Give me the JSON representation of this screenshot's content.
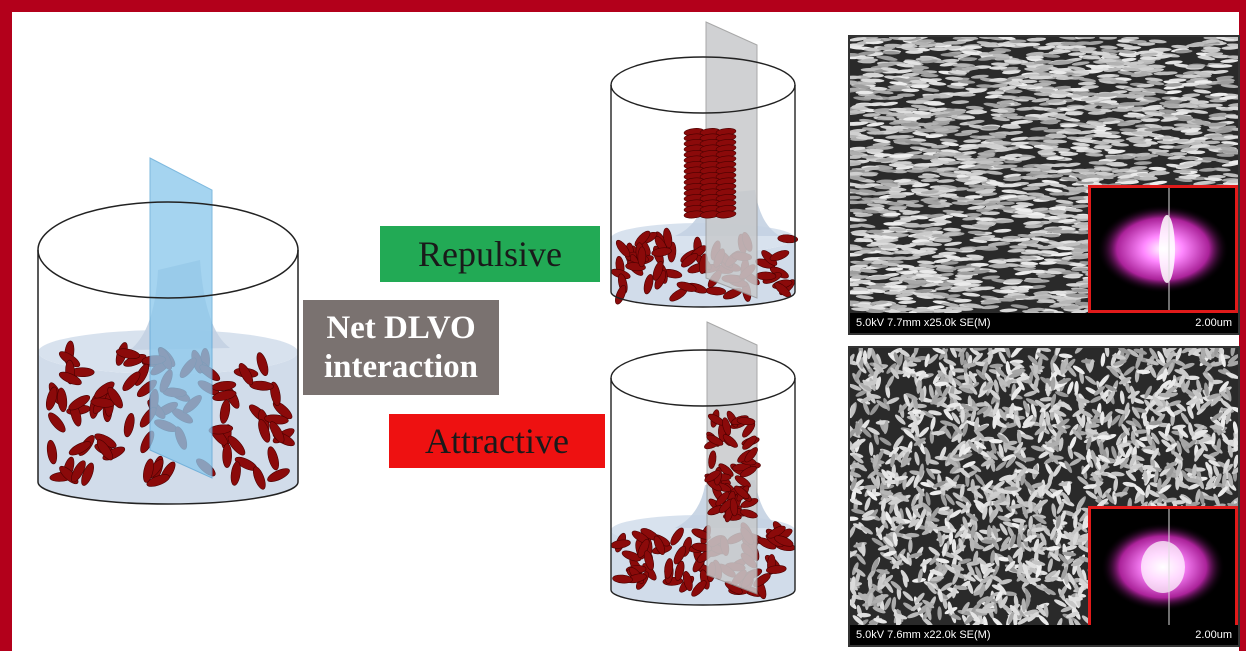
{
  "labels": {
    "net_dlvo": "Net DLVO interaction",
    "repulsive": "Repulsive",
    "attractive": "Attractive"
  },
  "sem_panels": [
    {
      "info": "5.0kV 7.7mm x25.0k SE(M)",
      "scale": "2.00um"
    },
    {
      "info": "5.0kV 7.6mm x22.0k SE(M)",
      "scale": "2.00um"
    }
  ],
  "colors": {
    "frame": "#b3001b",
    "net_box": "#7a7270",
    "repulsive_box": "#22aa55",
    "attractive_box": "#ee1111",
    "particle": "#8b0a0a",
    "liquid": "#c9d6e6",
    "substrate_blue": "#8cc8ec",
    "substrate_grey": "#c8cacc"
  }
}
